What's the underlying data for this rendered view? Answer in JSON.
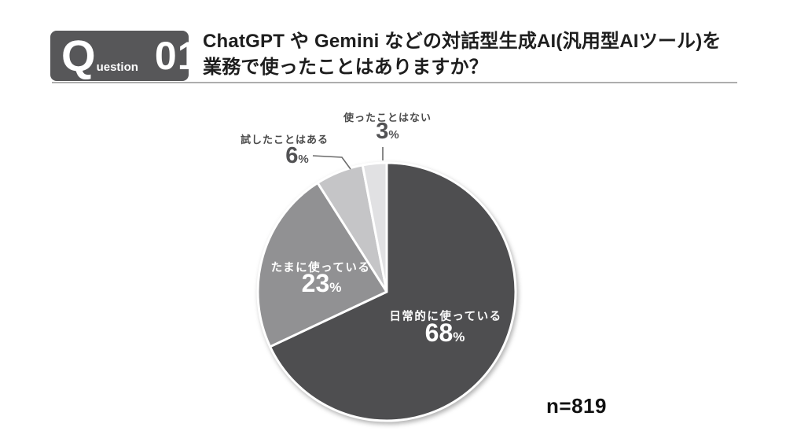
{
  "header": {
    "badge_q": "Q",
    "badge_uestion": "uestion",
    "badge_number": "01",
    "question_line1": "ChatGPT や Gemini などの対話型生成AI(汎用型AIツール)を",
    "question_line2": "業務で使ったことはありますか？"
  },
  "chart_data": {
    "type": "pie",
    "title": "ChatGPTやGeminiなどの対話型生成AI(汎用型AIツール)を業務で使ったことはありますか？",
    "start_angle_deg": 0,
    "direction": "clockwise",
    "percent_sign": "%",
    "n_label": "n=819",
    "slices": [
      {
        "label": "日常的に使っている",
        "value": 68,
        "color": "#4e4e50",
        "label_inside": true
      },
      {
        "label": "たまに使っている",
        "value": 23,
        "color": "#919193",
        "label_inside": true
      },
      {
        "label": "試したことはある",
        "value": 6,
        "color": "#c5c5c7",
        "label_inside": false
      },
      {
        "label": "使ったことはない",
        "value": 3,
        "color": "#e1e1e3",
        "label_inside": false
      }
    ],
    "gap_color": "#ffffff"
  }
}
